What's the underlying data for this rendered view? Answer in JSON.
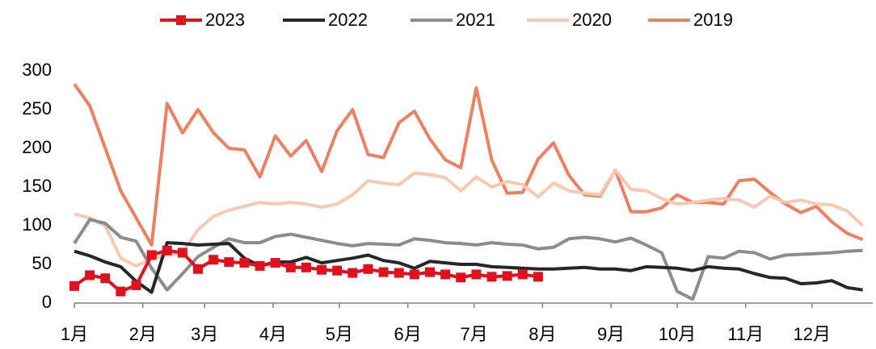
{
  "chart_data": {
    "type": "line",
    "x": [
      1,
      8,
      15,
      22,
      29,
      36,
      43,
      50,
      57,
      64,
      71,
      78,
      85,
      92,
      99,
      106,
      113,
      120,
      127,
      134,
      141,
      148,
      155,
      162,
      169,
      176,
      183,
      190,
      197,
      204,
      211,
      218,
      225,
      232,
      239,
      246,
      253,
      260,
      267,
      274,
      281,
      288,
      295,
      302,
      309,
      316,
      323,
      330,
      337,
      344,
      351,
      358
    ],
    "xlim": [
      1,
      364
    ],
    "xticks": [
      {
        "value": 1,
        "label": "1月"
      },
      {
        "value": 32,
        "label": "2月"
      },
      {
        "value": 60,
        "label": "3月"
      },
      {
        "value": 91,
        "label": "4月"
      },
      {
        "value": 121,
        "label": "5月"
      },
      {
        "value": 152,
        "label": "6月"
      },
      {
        "value": 182,
        "label": "7月"
      },
      {
        "value": 213,
        "label": "8月"
      },
      {
        "value": 244,
        "label": "9月"
      },
      {
        "value": 274,
        "label": "10月"
      },
      {
        "value": 305,
        "label": "11月"
      },
      {
        "value": 335,
        "label": "12月"
      }
    ],
    "ylim": [
      0,
      300
    ],
    "yticks": [
      0,
      50,
      100,
      150,
      200,
      250,
      300
    ],
    "legend": "top",
    "series": [
      {
        "name": "2023",
        "color": "#e0101c",
        "marker": "square",
        "values": [
          22,
          36,
          32,
          15,
          23,
          62,
          68,
          65,
          44,
          56,
          53,
          52,
          48,
          52,
          46,
          46,
          43,
          42,
          39,
          44,
          40,
          39,
          37,
          40,
          37,
          33,
          37,
          34,
          35,
          37,
          34,
          null,
          null,
          null,
          null,
          null,
          null,
          null,
          null,
          null,
          null,
          null,
          null,
          null,
          null,
          null,
          null,
          null,
          null,
          null,
          null,
          null
        ]
      },
      {
        "name": "2022",
        "color": "#262626",
        "values": [
          67,
          61,
          53,
          47,
          28,
          14,
          78,
          77,
          75,
          76,
          77,
          58,
          48,
          53,
          53,
          59,
          52,
          55,
          58,
          62,
          55,
          52,
          45,
          54,
          52,
          50,
          50,
          47,
          46,
          45,
          44,
          44,
          45,
          46,
          44,
          44,
          42,
          47,
          46,
          45,
          42,
          47,
          45,
          44,
          38,
          33,
          32,
          25,
          26,
          29,
          20,
          17
        ]
      },
      {
        "name": "2021",
        "color": "#8c8c8c",
        "values": [
          77,
          108,
          103,
          85,
          80,
          45,
          17,
          38,
          60,
          72,
          83,
          78,
          78,
          86,
          89,
          85,
          81,
          77,
          74,
          77,
          76,
          75,
          83,
          81,
          78,
          77,
          75,
          78,
          76,
          75,
          70,
          72,
          83,
          85,
          83,
          79,
          84,
          75,
          65,
          15,
          5,
          60,
          58,
          67,
          65,
          57,
          62,
          63,
          64,
          65,
          67,
          68
        ]
      },
      {
        "name": "2020",
        "color": "#f7c9b0",
        "values": [
          115,
          110,
          100,
          58,
          48,
          57,
          62,
          65,
          95,
          112,
          120,
          125,
          130,
          128,
          130,
          128,
          124,
          128,
          140,
          158,
          155,
          153,
          168,
          166,
          162,
          145,
          163,
          150,
          157,
          153,
          137,
          155,
          145,
          142,
          140,
          172,
          147,
          145,
          135,
          128,
          130,
          133,
          135,
          133,
          124,
          138,
          130,
          133,
          128,
          127,
          119,
          100
        ]
      },
      {
        "name": "2019",
        "color": "#ec8060",
        "values": [
          283,
          255,
          200,
          145,
          110,
          75,
          258,
          220,
          250,
          220,
          200,
          198,
          163,
          216,
          190,
          210,
          170,
          223,
          250,
          192,
          188,
          233,
          248,
          212,
          185,
          175,
          278,
          185,
          142,
          143,
          186,
          207,
          165,
          140,
          138,
          172,
          118,
          118,
          123,
          140,
          130,
          130,
          128,
          158,
          160,
          143,
          128,
          117,
          125,
          105,
          90,
          82
        ]
      }
    ]
  }
}
